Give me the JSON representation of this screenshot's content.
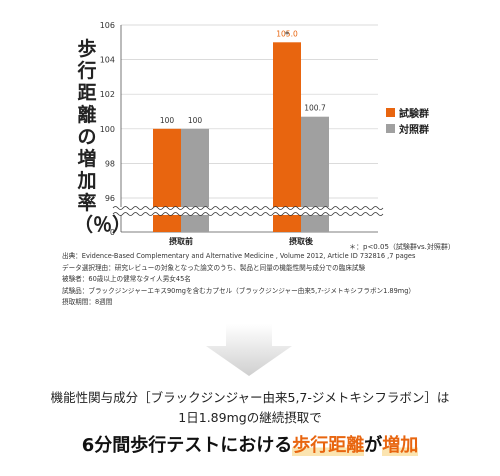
{
  "chart_data": {
    "type": "bar",
    "categories": [
      "摂取前",
      "摂取後"
    ],
    "series": [
      {
        "name": "試験群",
        "color": "#e8650f",
        "values": [
          100,
          105.0
        ]
      },
      {
        "name": "対照群",
        "color": "#a0a0a0",
        "values": [
          100,
          100.7
        ]
      }
    ],
    "data_labels": [
      [
        "100",
        "105.0"
      ],
      [
        "100",
        "100.7"
      ]
    ],
    "ylabel": "歩行距離の増加率（％）",
    "yticks": [
      "0",
      "96",
      "98",
      "100",
      "102",
      "104",
      "106"
    ],
    "ylim": [
      94.5,
      106
    ],
    "axis_break": true,
    "significance_marker": "*",
    "note": "＊：p<0.05（試験群vs.対照群）",
    "legend_position": "right"
  },
  "source": {
    "lines": [
      "出典：Evidence-Based Complementary and Alternative Medicine , Volume 2012, Article ID 732816 ,7 pages",
      "データ選択理由：研究レビューの対象となった論文のうち、製品と同量の機能性関与成分での臨床試験",
      "被験者：60歳以上の健常なタイ人男女45名",
      "試験品：ブラックジンジャーエキス90mgを含むカプセル（ブラックジンジャー由来5,7-ジメトキシフラボン1.89mg）",
      "摂取期間：8週間"
    ]
  },
  "callout": {
    "line1": "機能性関与成分［ブラックジンジャー由来5,7-ジメトキシフラボン］は",
    "line2": "1日1.89mgの継続摂取で",
    "line3_pre": "6分間歩行テストにおける",
    "line3_hl1": "歩行距離",
    "line3_mid": "が",
    "line3_hl2": "増加"
  }
}
